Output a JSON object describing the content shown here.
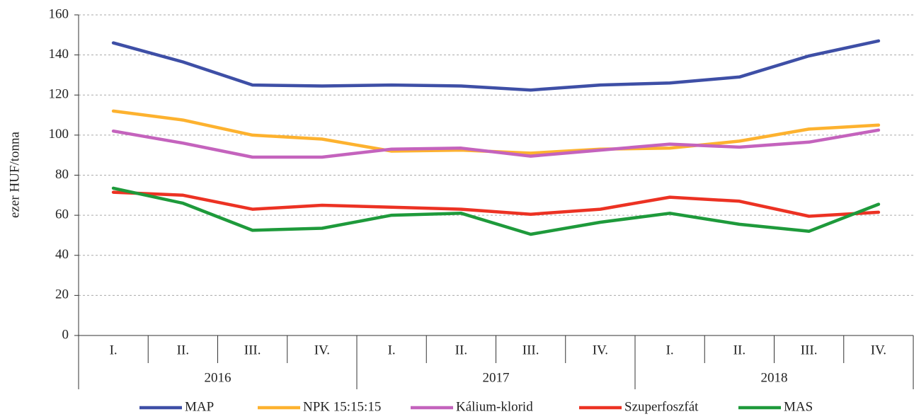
{
  "chart_data": {
    "type": "line",
    "y_label": "ezer HUF/tonna",
    "categories": [
      "I.",
      "II.",
      "III.",
      "IV.",
      "I.",
      "II.",
      "III.",
      "IV.",
      "I.",
      "II.",
      "III.",
      "IV."
    ],
    "category_groups": [
      "2016",
      "2017",
      "2018"
    ],
    "ylim": [
      0,
      160
    ],
    "yticks": [
      0,
      20,
      40,
      60,
      80,
      100,
      120,
      140,
      160
    ],
    "grid": true,
    "legend": "bottom",
    "series": [
      {
        "name": "MAP",
        "color": "#3e4fa6",
        "values": [
          146,
          136.5,
          125,
          124.5,
          125,
          124.5,
          122.5,
          125,
          126,
          129,
          139.5,
          147
        ]
      },
      {
        "name": "NPK 15:15:15",
        "color": "#fdb22f",
        "values": [
          112,
          107.5,
          100,
          98,
          92,
          92.5,
          91,
          93,
          93.5,
          97,
          103,
          105
        ]
      },
      {
        "name": "Kálium-klorid",
        "color": "#c463bd",
        "values": [
          102,
          96,
          89,
          89,
          93,
          93.5,
          89.5,
          92.5,
          95.5,
          94,
          96.5,
          102.5
        ]
      },
      {
        "name": "Szuperfoszfát",
        "color": "#ec3223",
        "values": [
          71.5,
          70,
          63,
          65,
          64,
          63,
          60.5,
          63,
          69,
          67,
          59.5,
          61.5
        ]
      },
      {
        "name": "MAS",
        "color": "#1e9a3b",
        "values": [
          73.5,
          66,
          52.5,
          53.5,
          60,
          61,
          50.5,
          56.5,
          61,
          55.5,
          52,
          65.5
        ]
      }
    ]
  }
}
